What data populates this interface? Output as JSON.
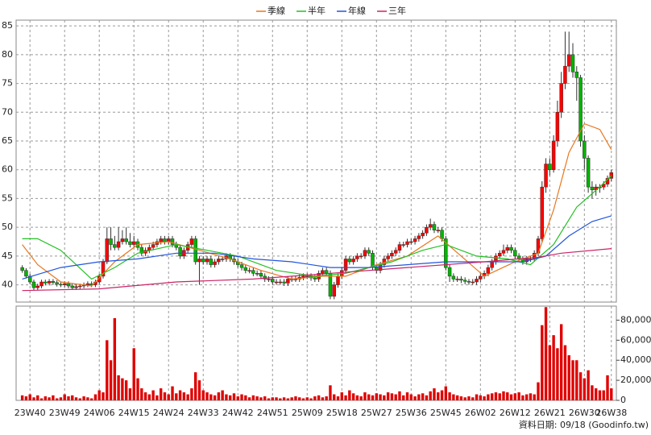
{
  "chart_data": [
    {
      "type": "candlestick",
      "xlim": [
        -1.6,
        154.3
      ],
      "ylim": [
        37,
        86
      ],
      "yticks": [
        40,
        45,
        50,
        55,
        60,
        65,
        70,
        75,
        80,
        85
      ],
      "grid": true,
      "up_color": "#ff0000",
      "down_color": "#00b400",
      "open": [
        43,
        42.5,
        41.5,
        40.5,
        39.5,
        39.8,
        40.5,
        40.3,
        40.6,
        40.4,
        40.1,
        40.0,
        40.2,
        39.8,
        39.5,
        39.7,
        39.8,
        40.0,
        40.2,
        40.0,
        40.5,
        41.5,
        44.0,
        48.0,
        47.0,
        46.5,
        47.5,
        48.0,
        47.5,
        47.0,
        47.5,
        46.5,
        45.5,
        46.0,
        46.5,
        47.0,
        47.5,
        48.0,
        47.5,
        48.0,
        47.0,
        46.5,
        45.0,
        46.0,
        47.0,
        48.0,
        44.0,
        44.5,
        44.0,
        44.5,
        43.5,
        44.0,
        44.5,
        44.5,
        45.0,
        44.5,
        44.0,
        43.5,
        43.0,
        42.5,
        42.5,
        42.0,
        42.0,
        41.5,
        41.0,
        41.0,
        40.5,
        40.5,
        40.5,
        40.3,
        41.0,
        41.0,
        41.0,
        41.3,
        41.5,
        41.5,
        41.2,
        41.0,
        42.0,
        42.5,
        42.0,
        38.0,
        40.0,
        41.5,
        42.5,
        44.5,
        44.0,
        44.5,
        45.0,
        45.0,
        46.0,
        45.5,
        43.0,
        42.5,
        43.5,
        44.5,
        45.0,
        45.5,
        46.0,
        47.0,
        47.0,
        47.5,
        47.5,
        48.0,
        48.5,
        49.0,
        50.0,
        50.5,
        49.5,
        49.5,
        48.0,
        43.0,
        41.5,
        41.0,
        41.0,
        40.8,
        40.6,
        40.5,
        40.5,
        41.0,
        41.5,
        42.0,
        43.0,
        44.0,
        45.0,
        45.5,
        46.0,
        46.5,
        46.0,
        45.0,
        44.5,
        44.0,
        44.5,
        44.5,
        45.5,
        48.0,
        57.0,
        61.0,
        60.0,
        65.0,
        70.0,
        75.0,
        78.0,
        80.0,
        77.0,
        76.0,
        65.0,
        62.0,
        57.0,
        56.5,
        57.0,
        57.0,
        57.5,
        58.5
      ],
      "high": [
        43.4,
        42.9,
        41.9,
        40.9,
        40.2,
        40.9,
        40.9,
        41.0,
        41.0,
        40.8,
        40.5,
        40.6,
        40.6,
        40.2,
        40.1,
        40.2,
        40.4,
        40.6,
        40.6,
        40.9,
        41.9,
        44.5,
        50.0,
        50.0,
        48.5,
        50.0,
        49.5,
        50.0,
        49.0,
        48.5,
        48.0,
        47.0,
        46.5,
        47.0,
        47.5,
        48.0,
        48.5,
        48.5,
        48.5,
        48.5,
        47.5,
        47.0,
        46.5,
        47.5,
        48.5,
        48.5,
        45.0,
        45.0,
        45.0,
        45.0,
        44.5,
        45.0,
        45.0,
        45.5,
        45.5,
        45.0,
        44.5,
        44.0,
        43.5,
        43.0,
        43.0,
        42.5,
        42.5,
        42.0,
        41.5,
        41.5,
        41.0,
        41.0,
        41.0,
        41.5,
        41.5,
        41.5,
        41.8,
        42.0,
        42.0,
        42.0,
        41.7,
        42.5,
        43.0,
        43.0,
        42.5,
        40.5,
        42.0,
        43.0,
        45.0,
        45.0,
        45.0,
        45.5,
        45.5,
        46.5,
        46.5,
        46.0,
        43.5,
        44.0,
        45.0,
        45.5,
        46.0,
        46.5,
        47.5,
        47.5,
        48.0,
        48.0,
        48.5,
        49.0,
        49.5,
        50.5,
        51.5,
        51.0,
        50.0,
        50.0,
        48.5,
        43.5,
        42.0,
        41.5,
        41.5,
        41.3,
        41.0,
        41.0,
        41.5,
        42.0,
        42.5,
        43.5,
        44.5,
        45.5,
        46.0,
        47.0,
        47.0,
        47.0,
        46.5,
        45.5,
        45.0,
        45.0,
        45.0,
        46.0,
        48.5,
        58.0,
        62.0,
        62.0,
        66.0,
        72.0,
        77.0,
        84.0,
        84.0,
        82.0,
        78.0,
        76.5,
        66.0,
        62.5,
        58.0,
        57.5,
        57.5,
        58.0,
        59.0,
        60.0
      ],
      "low": [
        42.1,
        41.1,
        40.1,
        39.1,
        39.1,
        39.4,
        39.9,
        39.9,
        40.0,
        39.7,
        39.6,
        39.6,
        39.4,
        39.1,
        39.1,
        39.3,
        39.4,
        39.6,
        39.6,
        39.6,
        40.1,
        41.1,
        43.6,
        46.0,
        46.0,
        46.0,
        47.0,
        47.0,
        46.5,
        46.5,
        46.0,
        45.0,
        45.0,
        45.5,
        46.0,
        46.5,
        47.0,
        47.0,
        47.0,
        46.5,
        46.0,
        44.5,
        44.5,
        45.5,
        46.5,
        43.5,
        40.0,
        43.5,
        43.5,
        43.0,
        43.0,
        43.5,
        44.0,
        44.0,
        44.0,
        43.5,
        43.0,
        42.5,
        42.0,
        42.0,
        41.5,
        41.5,
        41.0,
        40.5,
        40.5,
        40.0,
        40.0,
        40.0,
        39.8,
        39.8,
        40.5,
        40.5,
        40.5,
        40.8,
        41.0,
        40.7,
        40.5,
        40.5,
        41.5,
        41.5,
        37.5,
        37.5,
        39.5,
        41.0,
        42.0,
        43.5,
        43.5,
        44.0,
        44.5,
        44.5,
        45.0,
        42.5,
        42.0,
        42.0,
        43.0,
        44.0,
        44.5,
        45.0,
        45.5,
        46.5,
        46.5,
        47.0,
        47.0,
        47.5,
        48.0,
        48.5,
        49.5,
        49.0,
        49.0,
        47.5,
        42.5,
        40.5,
        40.5,
        40.5,
        40.3,
        40.1,
        40.0,
        40.0,
        40.0,
        40.5,
        41.0,
        41.5,
        42.5,
        43.5,
        44.5,
        45.0,
        45.5,
        45.5,
        44.5,
        44.0,
        43.5,
        43.5,
        44.0,
        44.0,
        45.0,
        47.5,
        56.0,
        59.0,
        59.5,
        64.0,
        69.0,
        74.0,
        77.0,
        76.0,
        72.0,
        64.0,
        60.0,
        56.0,
        55.0,
        55.5,
        56.0,
        56.5,
        57.0,
        58.0
      ],
      "close": [
        42.5,
        41.5,
        40.5,
        39.5,
        39.8,
        40.5,
        40.3,
        40.6,
        40.4,
        40.1,
        40.0,
        40.2,
        39.8,
        39.5,
        39.7,
        39.8,
        40.0,
        40.2,
        40.0,
        40.5,
        41.5,
        44.0,
        48.0,
        47.0,
        46.5,
        47.5,
        48.0,
        47.5,
        47.0,
        47.5,
        46.5,
        45.5,
        46.0,
        46.5,
        47.0,
        47.5,
        48.0,
        47.5,
        48.0,
        47.0,
        46.5,
        45.0,
        46.0,
        47.0,
        48.0,
        44.0,
        44.5,
        44.0,
        44.5,
        43.5,
        44.0,
        44.5,
        44.5,
        45.0,
        44.5,
        44.0,
        43.5,
        43.0,
        42.5,
        42.5,
        42.0,
        42.0,
        41.5,
        41.0,
        41.0,
        40.5,
        40.5,
        40.5,
        40.3,
        41.0,
        41.0,
        41.0,
        41.3,
        41.5,
        41.5,
        41.2,
        41.0,
        42.0,
        42.5,
        42.0,
        38.0,
        40.0,
        41.5,
        42.5,
        44.5,
        44.0,
        44.5,
        45.0,
        45.0,
        46.0,
        45.5,
        43.0,
        42.5,
        43.5,
        44.5,
        45.0,
        45.5,
        46.0,
        47.0,
        47.0,
        47.5,
        47.5,
        48.0,
        48.5,
        49.0,
        50.0,
        50.5,
        49.5,
        49.5,
        48.0,
        43.0,
        41.5,
        41.0,
        41.0,
        40.8,
        40.6,
        40.5,
        40.5,
        41.0,
        41.5,
        42.0,
        43.0,
        44.0,
        45.0,
        45.5,
        46.0,
        46.5,
        46.0,
        45.0,
        44.5,
        44.0,
        44.5,
        44.5,
        45.5,
        48.0,
        57.0,
        61.0,
        60.0,
        65.0,
        70.0,
        75.0,
        78.0,
        80.0,
        77.0,
        76.0,
        65.0,
        62.0,
        57.0,
        56.5,
        57.0,
        57.0,
        57.5,
        58.5,
        59.5
      ],
      "series": [
        {
          "name": "季線",
          "color": "#e8771f",
          "x": [
            0,
            4,
            10,
            18,
            24,
            30,
            38,
            46,
            54,
            62,
            70,
            78,
            84,
            92,
            100,
            108,
            114,
            120,
            128,
            134,
            138,
            142,
            146,
            150,
            153
          ],
          "values": [
            47,
            43.5,
            40.5,
            39.8,
            44,
            47,
            47.5,
            46,
            44.5,
            42.5,
            41,
            41.5,
            41.5,
            43.5,
            45,
            48.5,
            45,
            41.5,
            44,
            45.5,
            53,
            63,
            68,
            67,
            63.5
          ]
        },
        {
          "name": "半年",
          "color": "#22c022",
          "x": [
            0,
            4,
            10,
            18,
            24,
            30,
            40,
            48,
            56,
            66,
            76,
            84,
            96,
            104,
            110,
            118,
            126,
            132,
            138,
            144,
            150,
            153
          ],
          "values": [
            48,
            48,
            46,
            41,
            43,
            45.5,
            47,
            46,
            45,
            42.5,
            41.5,
            42,
            44,
            46,
            47,
            45,
            44.5,
            43.5,
            47,
            53.5,
            57,
            59
          ]
        },
        {
          "name": "年線",
          "color": "#2255dd",
          "x": [
            0,
            10,
            20,
            30,
            40,
            50,
            60,
            70,
            80,
            90,
            100,
            110,
            120,
            130,
            136,
            142,
            148,
            153
          ],
          "values": [
            41,
            43,
            44,
            44.5,
            45.5,
            45.5,
            44.5,
            44,
            43,
            43,
            43.5,
            44,
            44,
            44,
            45,
            48.5,
            51,
            52
          ]
        },
        {
          "name": "三年",
          "color": "#cc2266",
          "x": [
            0,
            20,
            40,
            60,
            80,
            100,
            120,
            134,
            140,
            153
          ],
          "values": [
            39,
            39.3,
            40.5,
            41,
            42,
            43,
            44,
            44.8,
            45.5,
            46.3
          ]
        }
      ]
    },
    {
      "type": "bar",
      "color": "#e00000",
      "xlim": [
        -1.6,
        154.3
      ],
      "ylim": [
        0,
        94000
      ],
      "yticks": [
        {
          "value": 0,
          "label": "0"
        },
        {
          "value": 20000,
          "label": "20,000"
        },
        {
          "value": 40000,
          "label": "40,000"
        },
        {
          "value": 60000,
          "label": "60,000"
        },
        {
          "value": 80000,
          "label": "80,000"
        }
      ],
      "xticks": [
        {
          "value": 2,
          "label": "23W40"
        },
        {
          "value": 11,
          "label": "23W49"
        },
        {
          "value": 20,
          "label": "24W06"
        },
        {
          "value": 29,
          "label": "24W15"
        },
        {
          "value": 38,
          "label": "24W24"
        },
        {
          "value": 47,
          "label": "24W33"
        },
        {
          "value": 56,
          "label": "24W42"
        },
        {
          "value": 65,
          "label": "24W51"
        },
        {
          "value": 74,
          "label": "25W09"
        },
        {
          "value": 83,
          "label": "25W18"
        },
        {
          "value": 92,
          "label": "25W27"
        },
        {
          "value": 101,
          "label": "25W36"
        },
        {
          "value": 110,
          "label": "25W45"
        },
        {
          "value": 119,
          "label": "26W02"
        },
        {
          "value": 128,
          "label": "26W12"
        },
        {
          "value": 137,
          "label": "26W21"
        },
        {
          "value": 146,
          "label": "26W30"
        },
        {
          "value": 153,
          "label": "26W38"
        }
      ],
      "values": [
        5000,
        4000,
        6000,
        3000,
        5000,
        2000,
        4000,
        3000,
        5000,
        2000,
        3000,
        6000,
        4000,
        5000,
        3000,
        2000,
        4000,
        3000,
        2000,
        6000,
        10000,
        8000,
        60000,
        40000,
        82000,
        25000,
        22000,
        20000,
        12000,
        52000,
        22000,
        12000,
        8000,
        6000,
        10000,
        5000,
        12000,
        8000,
        6000,
        14000,
        7000,
        10000,
        8000,
        6000,
        12000,
        28000,
        20000,
        10000,
        8000,
        6000,
        5000,
        8000,
        10000,
        6000,
        5000,
        7000,
        4000,
        6000,
        5000,
        3000,
        5000,
        4000,
        3000,
        4000,
        2000,
        3000,
        3000,
        2000,
        3000,
        2000,
        3000,
        4000,
        3000,
        2000,
        3000,
        2000,
        4000,
        5000,
        3000,
        4000,
        15000,
        6000,
        4000,
        8000,
        5000,
        10000,
        7000,
        5000,
        4000,
        8000,
        6000,
        5000,
        7000,
        6000,
        5000,
        8000,
        7000,
        6000,
        9000,
        5000,
        8000,
        6000,
        4000,
        6000,
        7000,
        5000,
        9000,
        12000,
        8000,
        10000,
        14000,
        8000,
        6000,
        5000,
        4000,
        3000,
        4000,
        3000,
        6000,
        5000,
        4000,
        6000,
        7000,
        8000,
        7000,
        9000,
        8000,
        6000,
        7000,
        8000,
        5000,
        6000,
        7000,
        6000,
        18000,
        75000,
        93000,
        55000,
        65000,
        52000,
        76000,
        55000,
        45000,
        40000,
        40000,
        28000,
        22000,
        30000,
        15000,
        12000,
        10000,
        10000,
        25000,
        12000
      ],
      "note": "資料日期: 09/18  (Goodinfo.tw)"
    }
  ]
}
